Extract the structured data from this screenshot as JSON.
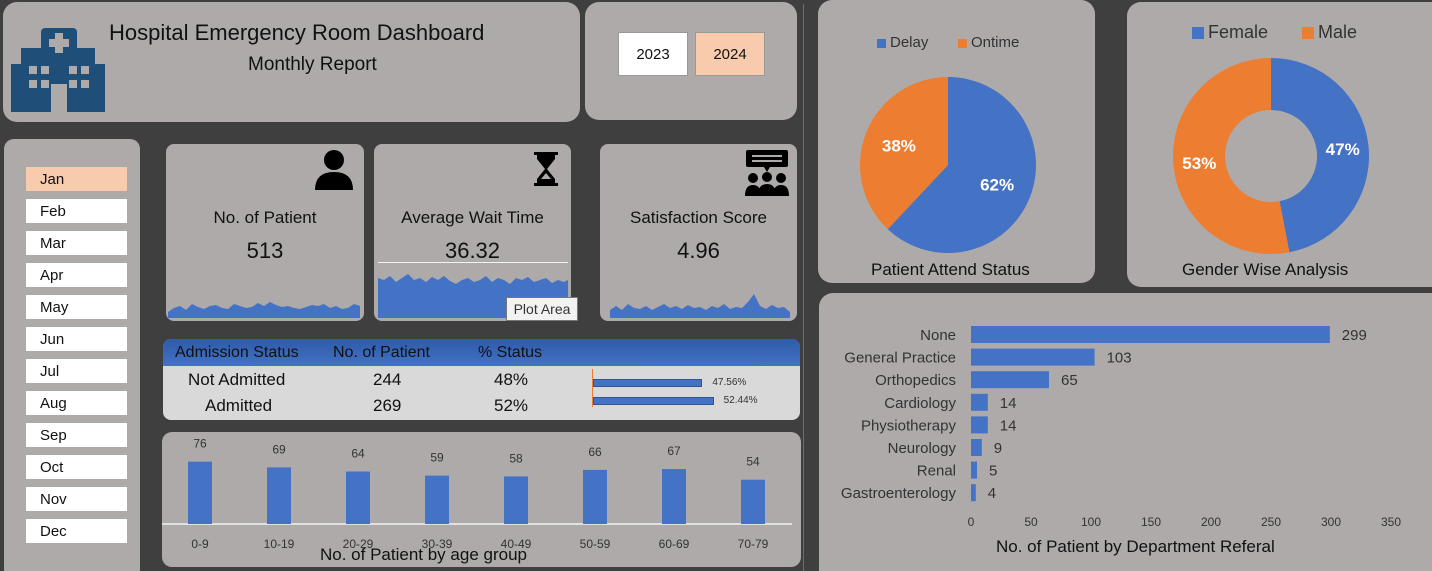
{
  "header": {
    "title": "Hospital Emergency Room Dashboard",
    "subtitle": "Monthly Report"
  },
  "years": [
    {
      "label": "2023",
      "selected": false
    },
    {
      "label": "2024",
      "selected": true
    }
  ],
  "months": [
    "Jan",
    "Feb",
    "Mar",
    "Apr",
    "May",
    "Jun",
    "Jul",
    "Aug",
    "Sep",
    "Oct",
    "Nov",
    "Dec"
  ],
  "selected_month": "Jan",
  "kpis": {
    "patients": {
      "label": "No. of Patient",
      "value": "513",
      "icon": "person-icon"
    },
    "wait": {
      "label": "Average Wait Time",
      "value": "36.32",
      "icon": "hourglass-icon"
    },
    "satisfaction": {
      "label": "Satisfaction Score",
      "value": "4.96",
      "icon": "feedback-group-icon"
    }
  },
  "tooltip": "Plot Area",
  "admission": {
    "headers": [
      "Admission Status",
      "No. of Patient",
      "% Status"
    ],
    "rows": [
      {
        "status": "Not Admitted",
        "count": "244",
        "pct": "48%",
        "bar_label": "47.56%",
        "bar_value": 47.56
      },
      {
        "status": "Admitted",
        "count": "269",
        "pct": "52%",
        "bar_label": "52.44%",
        "bar_value": 52.44
      }
    ]
  },
  "colors": {
    "blue": "#4472c4",
    "orange": "#ed7d31",
    "panel": "#aeaaaa",
    "background": "#3f3f3f",
    "selected": "#f8cbad"
  },
  "chart_data": [
    {
      "type": "bar",
      "title": "No. of Patient by age group",
      "categories": [
        "0-9",
        "10-19",
        "20-29",
        "30-39",
        "40-49",
        "50-59",
        "60-69",
        "70-79"
      ],
      "values": [
        76,
        69,
        64,
        59,
        58,
        66,
        67,
        54
      ]
    },
    {
      "type": "pie",
      "title": "Patient Attend Status",
      "legend": [
        "Delay",
        "Ontime"
      ],
      "legend_position": "top",
      "values": [
        62,
        38
      ],
      "labels": [
        "62%",
        "38%"
      ]
    },
    {
      "type": "pie",
      "subtype": "donut",
      "title": "Gender Wise Analysis",
      "legend": [
        "Female",
        "Male"
      ],
      "legend_position": "top",
      "values": [
        47,
        53
      ],
      "labels": [
        "47%",
        "53%"
      ]
    },
    {
      "type": "bar",
      "orientation": "horizontal",
      "title": "No. of Patient by Department Referal",
      "categories": [
        "None",
        "General Practice",
        "Orthopedics",
        "Cardiology",
        "Physiotherapy",
        "Neurology",
        "Renal",
        "Gastroenterology"
      ],
      "values": [
        299,
        103,
        65,
        14,
        14,
        9,
        5,
        4
      ],
      "xlim": [
        0,
        350
      ],
      "xticks": [
        0,
        50,
        100,
        150,
        200,
        250,
        300,
        350
      ]
    }
  ]
}
